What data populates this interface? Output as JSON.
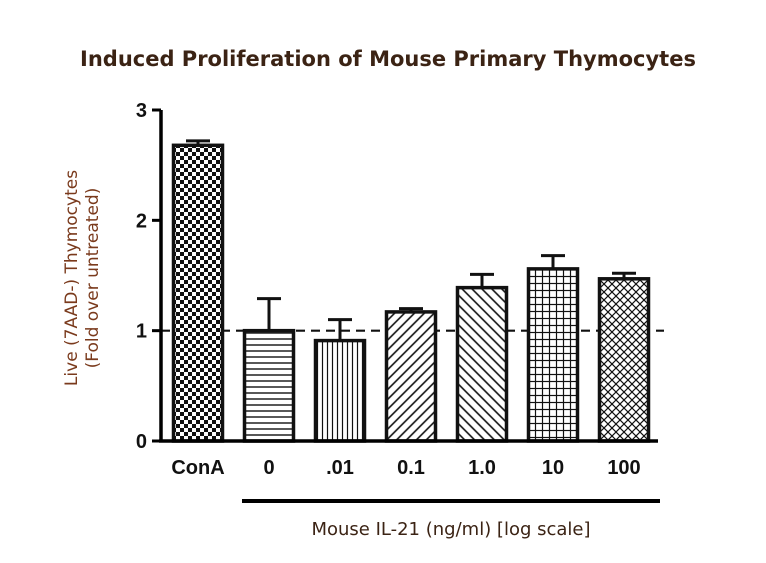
{
  "chart_data": {
    "type": "bar",
    "title": "Induced Proliferation of Mouse Primary Thymocytes",
    "ylabel_line1": "Live (7AAD-) Thymocytes",
    "ylabel_line2": "(Fold over untreated)",
    "xlabel": "Mouse IL-21 (ng/ml) [log scale]",
    "categories": [
      "ConA",
      "0",
      ".01",
      "0.1",
      "1.0",
      "10",
      "100"
    ],
    "values": [
      2.68,
      1.0,
      0.91,
      1.17,
      1.39,
      1.56,
      1.47
    ],
    "errors": [
      0.04,
      0.29,
      0.19,
      0.03,
      0.12,
      0.12,
      0.05
    ],
    "patterns": [
      "checker",
      "horizontal",
      "vertical",
      "diagonal-up",
      "diagonal-down",
      "grid",
      "crosshatch"
    ],
    "yticks": [
      0,
      1,
      2,
      3
    ],
    "ylim": [
      0,
      3
    ],
    "reference_line": 1,
    "grid": false,
    "legend": "none",
    "colors": {
      "bars": "#111111",
      "axis": "#000000",
      "title": "#3b2314",
      "ylabel": "#7a3a1c"
    }
  }
}
